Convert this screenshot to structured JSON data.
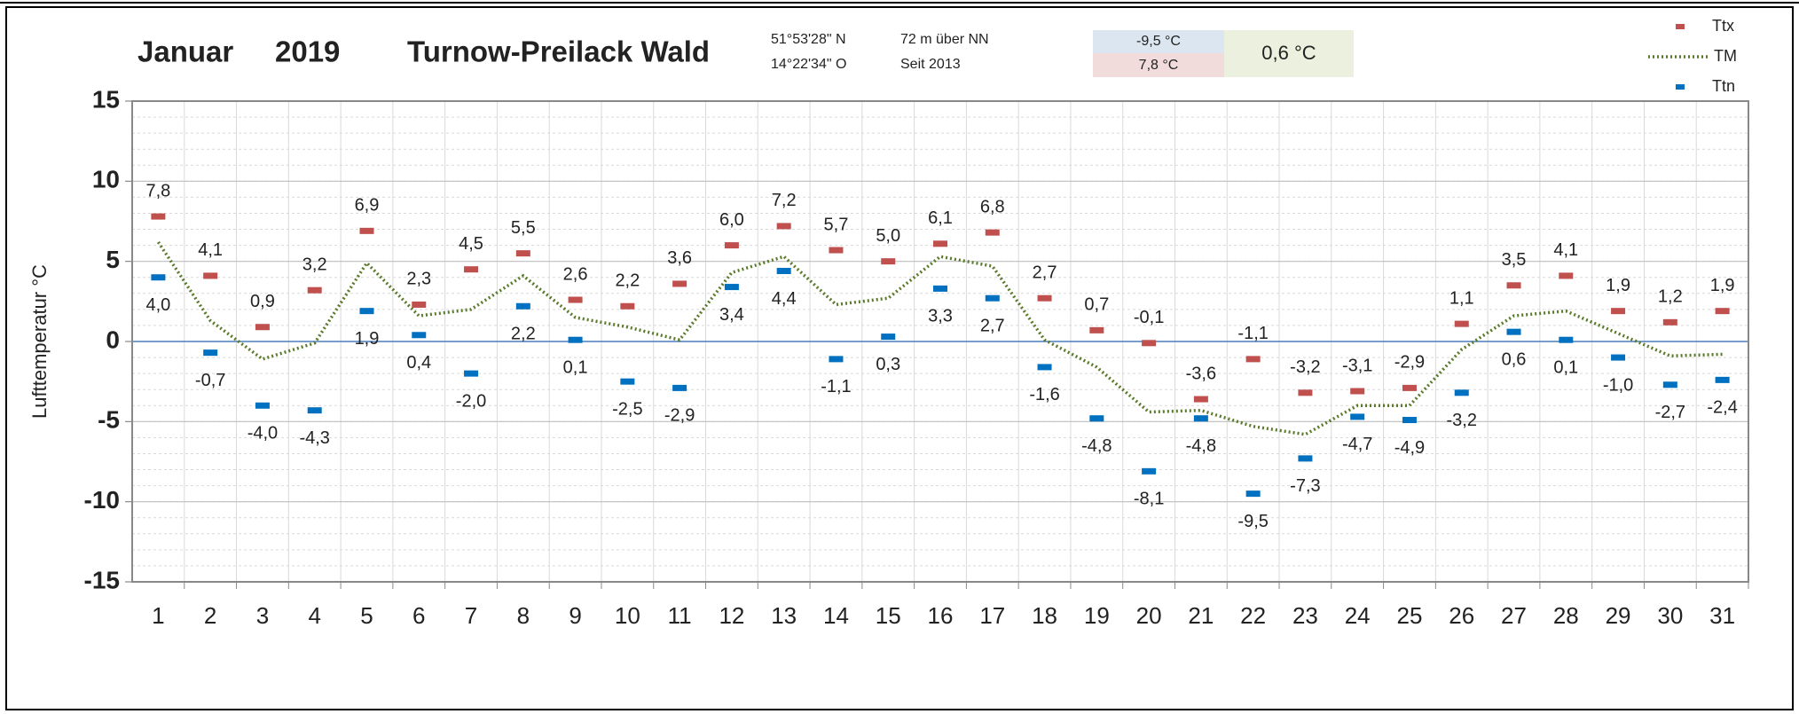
{
  "chart_data": {
    "type": "line",
    "header": {
      "month": "Januar",
      "year": "2019",
      "station": "Turnow-Preilack Wald",
      "latitude": "51°53'28\" N",
      "longitude": "14°22'34\" O",
      "altitude": "72 m über NN",
      "since": "Seit 2013",
      "min_label": "-9,5 °C",
      "max_label": "7,8 °C",
      "mean_label": "0,6 °C"
    },
    "y_label": "Lufttemperatur °C",
    "categories": [
      "1",
      "2",
      "3",
      "4",
      "5",
      "6",
      "7",
      "8",
      "9",
      "10",
      "11",
      "12",
      "13",
      "14",
      "15",
      "16",
      "17",
      "18",
      "19",
      "20",
      "21",
      "22",
      "23",
      "24",
      "25",
      "26",
      "27",
      "28",
      "29",
      "30",
      "31"
    ],
    "series": [
      {
        "name": "Ttx",
        "color": "#c0504d",
        "mark": "dash",
        "values": [
          7.8,
          4.1,
          0.9,
          3.2,
          6.9,
          2.3,
          4.5,
          5.5,
          2.6,
          2.2,
          3.6,
          6.0,
          7.2,
          5.7,
          5.0,
          6.1,
          6.8,
          2.7,
          0.7,
          -0.1,
          -3.6,
          -1.1,
          -3.2,
          -3.1,
          -2.9,
          1.1,
          3.5,
          4.1,
          1.9,
          1.2,
          1.9
        ],
        "value_labels": [
          "7,8",
          "4,1",
          "0,9",
          "3,2",
          "6,9",
          "2,3",
          "4,5",
          "5,5",
          "2,6",
          "2,2",
          "3,6",
          "6,0",
          "7,2",
          "5,7",
          "5,0",
          "6,1",
          "6,8",
          "2,7",
          "0,7",
          "-0,1",
          "-3,6",
          "-1,1",
          "-3,2",
          "-3,1",
          "-2,9",
          "1,1",
          "3,5",
          "4,1",
          "1,9",
          "1,2",
          "1,9"
        ],
        "label_position": "above"
      },
      {
        "name": "TM",
        "color": "#5a7a2a",
        "mark": "dotted-line",
        "values": [
          6.2,
          1.3,
          -1.1,
          -0.1,
          4.9,
          1.6,
          2.0,
          4.1,
          1.5,
          0.9,
          0.1,
          4.3,
          5.3,
          2.3,
          2.7,
          5.3,
          4.7,
          0.1,
          -1.6,
          -4.4,
          -4.3,
          -5.3,
          -5.8,
          -4.0,
          -4.0,
          -0.5,
          1.6,
          1.9,
          0.5,
          -0.9,
          -0.8
        ]
      },
      {
        "name": "Ttn",
        "color": "#0070c0",
        "mark": "dash",
        "values": [
          4.0,
          -0.7,
          -4.0,
          -4.3,
          1.9,
          0.4,
          -2.0,
          2.2,
          0.1,
          -2.5,
          -2.9,
          3.4,
          4.4,
          -1.1,
          0.3,
          3.3,
          2.7,
          -1.6,
          -4.8,
          -8.1,
          -4.8,
          -9.5,
          -7.3,
          -4.7,
          -4.9,
          -3.2,
          0.6,
          0.1,
          -1.0,
          -2.7,
          -2.4
        ],
        "value_labels": [
          "4,0",
          "-0,7",
          "-4,0",
          "-4,3",
          "1,9",
          "0,4",
          "-2,0",
          "2,2",
          "0,1",
          "-2,5",
          "-2,9",
          "3,4",
          "4,4",
          "-1,1",
          "0,3",
          "3,3",
          "2,7",
          "-1,6",
          "-4,8",
          "-8,1",
          "-4,8",
          "-9,5",
          "-7,3",
          "-4,7",
          "-4,9",
          "-3,2",
          "0,6",
          "0,1",
          "-1,0",
          "-2,7",
          "-2,4"
        ],
        "label_position": "below"
      }
    ],
    "ylim": [
      -15,
      15
    ],
    "yticks": [
      -15,
      -10,
      -5,
      0,
      5,
      10,
      15
    ],
    "grid": true,
    "minor_grid_step": 1,
    "zero_line_color": "#4a7ebb",
    "legend": "top-right"
  }
}
